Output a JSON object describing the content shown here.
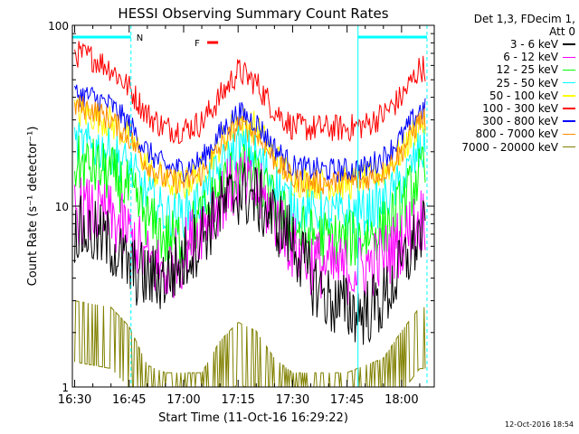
{
  "chart_data": {
    "type": "line",
    "title": "HESSI Observing Summary Count Rates",
    "xlabel": "Start Time (11-Oct-16 16:29:22)",
    "ylabel": "Count Rate (s⁻¹ detector⁻¹)",
    "yscale": "log",
    "ylim": [
      1,
      100
    ],
    "xlim": [
      "16:29:22",
      "18:09:00"
    ],
    "x_ticks": [
      "16:30",
      "16:45",
      "17:00",
      "17:15",
      "17:30",
      "17:45",
      "18:00"
    ],
    "y_ticks": [
      "1",
      "10",
      "100"
    ],
    "grid": false,
    "legend_header": [
      "Det 1,3, FDecim 1,",
      "Att 0"
    ],
    "legend_position": "right, outside plot",
    "annotations": {
      "night_label": "N",
      "flare_label": "F",
      "night_intervals": [
        [
          "16:29:22",
          "16:45:30"
        ],
        [
          "17:48:00",
          "18:07:00"
        ]
      ],
      "flare_interval": [
        "17:06:30",
        "17:09:30"
      ]
    },
    "x": [
      "16:30",
      "16:35",
      "16:40",
      "16:45",
      "16:50",
      "16:55",
      "17:00",
      "17:05",
      "17:10",
      "17:15",
      "17:20",
      "17:25",
      "17:30",
      "17:35",
      "17:40",
      "17:45",
      "17:50",
      "17:55",
      "18:00",
      "18:05"
    ],
    "series": [
      {
        "name": "3 - 6 keV",
        "color": "#000000",
        "values": [
          7.5,
          7.0,
          6.2,
          4.5,
          4.0,
          4.0,
          5.0,
          7.0,
          9.5,
          12.0,
          11.0,
          8.5,
          6.5,
          4.0,
          3.0,
          2.7,
          2.6,
          3.0,
          4.5,
          7.0
        ]
      },
      {
        "name": "6 - 12 keV",
        "color": "#ff00ff",
        "values": [
          9.5,
          9.2,
          8.5,
          7.0,
          5.0,
          4.3,
          5.5,
          8.0,
          11.0,
          13.5,
          12.0,
          9.0,
          6.0,
          5.0,
          4.6,
          4.4,
          4.6,
          5.2,
          6.5,
          8.5
        ]
      },
      {
        "name": "12 - 25 keV",
        "color": "#00ff00",
        "values": [
          17.0,
          16.5,
          15.0,
          12.0,
          8.5,
          6.5,
          6.8,
          8.5,
          12.5,
          16.0,
          14.0,
          10.0,
          7.5,
          6.8,
          6.5,
          6.5,
          6.8,
          7.5,
          10.0,
          15.0
        ]
      },
      {
        "name": "25 - 50 keV",
        "color": "#00ffff",
        "values": [
          22.0,
          21.5,
          20.0,
          16.5,
          11.5,
          9.0,
          9.0,
          11.0,
          16.0,
          21.5,
          19.0,
          13.5,
          10.0,
          9.2,
          9.0,
          9.0,
          9.3,
          10.5,
          13.5,
          20.0
        ]
      },
      {
        "name": "50 - 100 keV",
        "color": "#ffff00",
        "values": [
          33.0,
          32.0,
          29.0,
          24.0,
          17.0,
          13.5,
          13.0,
          15.5,
          22.0,
          30.0,
          27.0,
          19.0,
          14.0,
          13.5,
          13.3,
          13.3,
          13.8,
          15.5,
          20.0,
          29.0
        ]
      },
      {
        "name": "100 - 300 keV",
        "color": "#ff0000",
        "values": [
          70.0,
          66.0,
          58.0,
          45.0,
          32.0,
          27.0,
          26.5,
          29.0,
          40.0,
          56.0,
          48.0,
          34.0,
          27.5,
          27.0,
          27.0,
          27.0,
          28.0,
          32.0,
          40.0,
          58.0
        ]
      },
      {
        "name": "300 - 800 keV",
        "color": "#0000ff",
        "values": [
          42.0,
          40.0,
          36.0,
          28.5,
          20.0,
          16.5,
          16.0,
          18.0,
          25.0,
          33.0,
          29.0,
          21.0,
          16.5,
          16.0,
          15.8,
          15.8,
          16.3,
          18.5,
          24.0,
          34.0
        ]
      },
      {
        "name": "800 - 7000 keV",
        "color": "#ff8c00",
        "values": [
          36.0,
          34.0,
          30.0,
          24.0,
          17.0,
          14.0,
          13.5,
          15.0,
          21.0,
          28.0,
          25.0,
          18.0,
          14.0,
          13.6,
          13.5,
          13.5,
          14.0,
          15.5,
          20.0,
          30.0
        ]
      },
      {
        "name": "7000 - 20000 keV",
        "color": "#808000",
        "values": [
          2.5,
          2.4,
          2.3,
          1.8,
          1.1,
          1.0,
          1.0,
          1.0,
          1.5,
          1.9,
          1.7,
          1.2,
          1.0,
          1.0,
          1.0,
          1.0,
          1.1,
          1.2,
          1.7,
          2.3
        ]
      }
    ]
  },
  "footer": {
    "timestamp": "12-Oct-2016 18:54"
  }
}
